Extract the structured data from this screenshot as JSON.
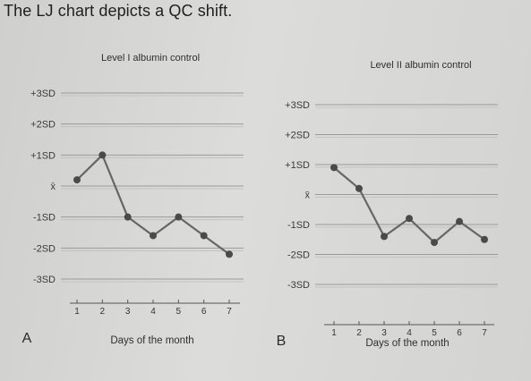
{
  "title": "The LJ chart depicts a QC shift.",
  "chart_data": [
    {
      "type": "line",
      "panel": "A",
      "title": "Level I albumin control",
      "xlabel": "Days of the month",
      "ylabel": "",
      "x": [
        1,
        2,
        3,
        4,
        5,
        6,
        7
      ],
      "x_tick_labels": [
        "1",
        "2",
        "3",
        "4",
        "5",
        "6",
        "7"
      ],
      "y_tick_labels": [
        "+3SD",
        "+2SD",
        "+1SD",
        "x̄",
        "-1SD",
        "-2SD",
        "-3SD"
      ],
      "y_tick_values": [
        3,
        2,
        1,
        0,
        -1,
        -2,
        -3
      ],
      "ylim": [
        -3,
        3
      ],
      "values": [
        0.2,
        1.0,
        -1.0,
        -1.6,
        -1.0,
        -1.6,
        -2.2
      ],
      "grid": true,
      "line_color": "#666666",
      "marker_color": "#4a4a4a"
    },
    {
      "type": "line",
      "panel": "B",
      "title": "Level II albumin control",
      "xlabel": "Days of the month",
      "ylabel": "",
      "x": [
        1,
        2,
        3,
        4,
        5,
        6,
        7
      ],
      "x_tick_labels": [
        "1",
        "2",
        "3",
        "4",
        "5",
        "6",
        "7"
      ],
      "y_tick_labels": [
        "+3SD",
        "+2SD",
        "+1SD",
        "x̄",
        "-1SD",
        "-2SD",
        "-3SD"
      ],
      "y_tick_values": [
        3,
        2,
        1,
        0,
        -1,
        -2,
        -3
      ],
      "ylim": [
        -3,
        3
      ],
      "values": [
        0.9,
        0.2,
        -1.4,
        -0.8,
        -1.6,
        -0.9,
        -1.5
      ],
      "grid": true,
      "line_color": "#666666",
      "marker_color": "#4a4a4a"
    }
  ]
}
